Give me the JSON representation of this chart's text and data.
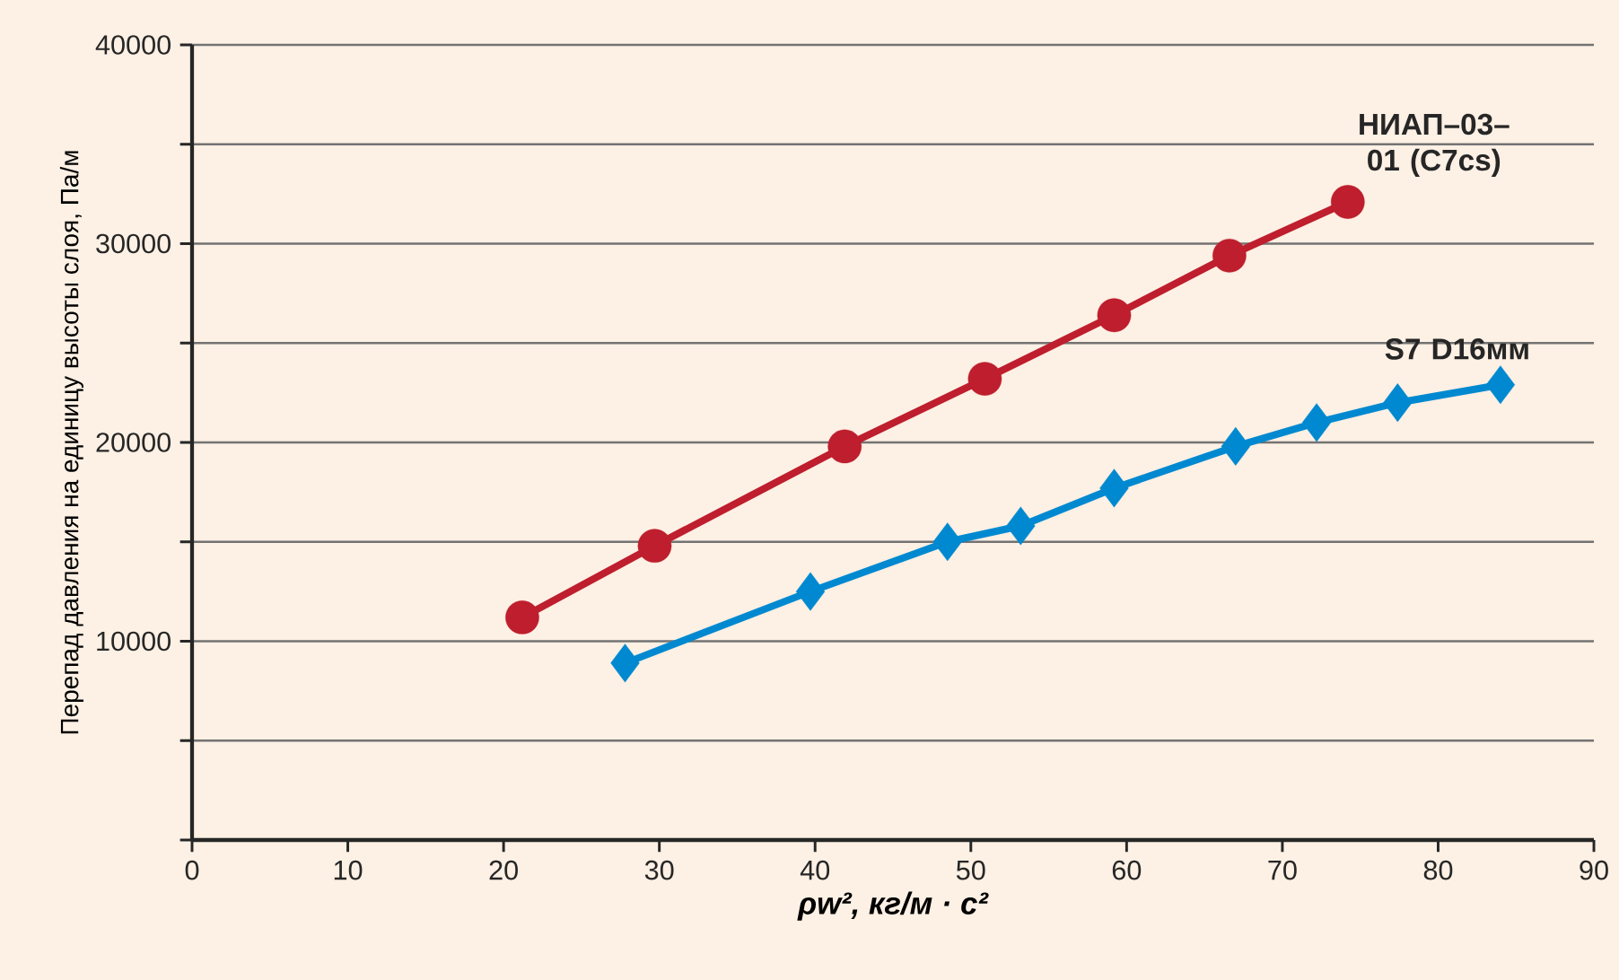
{
  "chart_data": {
    "type": "line",
    "xlabel": "ρw², кг/м · с²",
    "ylabel": "Перепад давления на единицу высоты слоя, Па/м",
    "xlim": [
      0,
      90
    ],
    "xticks": [
      0,
      10,
      20,
      30,
      40,
      50,
      60,
      70,
      80,
      90
    ],
    "ylim": [
      0,
      40000
    ],
    "yticks": [
      {
        "value": 0,
        "label": null
      },
      {
        "value": 5000,
        "label": null
      },
      10000,
      {
        "value": 15000,
        "label": null
      },
      20000,
      {
        "value": 25000,
        "label": null
      },
      30000,
      {
        "value": 35000,
        "label": null
      },
      40000
    ],
    "grid": "y",
    "series": [
      {
        "name": "НИАП–03–01 (C7cs)",
        "color": "#be1e2d",
        "marker": "circle",
        "x": [
          21.2,
          29.7,
          41.9,
          50.9,
          59.2,
          66.6,
          74.2
        ],
        "values": [
          11200,
          14800,
          19800,
          23200,
          26400,
          29400,
          32100
        ]
      },
      {
        "name": "S7 D16мм",
        "color": "#0089d0",
        "marker": "diamond",
        "x": [
          27.8,
          39.7,
          48.5,
          53.2,
          59.2,
          67.0,
          72.2,
          77.4,
          84.0
        ],
        "values": [
          8900,
          12500,
          15000,
          15800,
          17700,
          19800,
          21000,
          22000,
          22900
        ]
      }
    ]
  }
}
